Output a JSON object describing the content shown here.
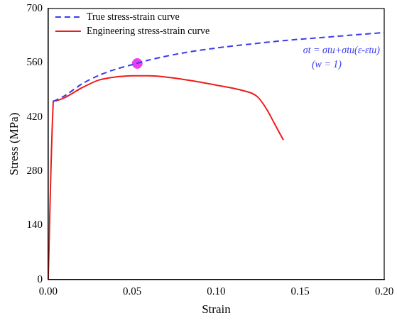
{
  "chart_data": {
    "type": "line",
    "x_label": "Strain",
    "y_label": "Stress (MPa)",
    "xlim": [
      0,
      0.2
    ],
    "ylim": [
      0,
      700
    ],
    "xticks": [
      {
        "value": 0,
        "label": "0.00"
      },
      {
        "value": 0.05,
        "label": "0.05"
      },
      {
        "value": 0.1,
        "label": "0.10"
      },
      {
        "value": 0.15,
        "label": "0.15"
      },
      {
        "value": 0.2,
        "label": "0.20"
      }
    ],
    "yticks": [
      0,
      140,
      280,
      420,
      560,
      700
    ],
    "grid": false,
    "legend": "top-left",
    "series": [
      {
        "name": "True stress-strain curve",
        "color": "#3b3bef",
        "line_style": "dashed",
        "x": [
          0.003,
          0.01,
          0.02,
          0.03,
          0.04,
          0.05,
          0.06,
          0.08,
          0.1,
          0.12,
          0.14,
          0.16,
          0.18,
          0.2
        ],
        "values": [
          460,
          475,
          505,
          527,
          543,
          555,
          567,
          585,
          598,
          608,
          617,
          624,
          631,
          638
        ]
      },
      {
        "name": "Engineering stress-strain curve",
        "color": "#ee1c1c",
        "line_style": "solid",
        "x": [
          0,
          0.003,
          0.005,
          0.01,
          0.02,
          0.03,
          0.04,
          0.05,
          0.06,
          0.07,
          0.08,
          0.09,
          0.1,
          0.11,
          0.12,
          0.125,
          0.13,
          0.135,
          0.14
        ],
        "values": [
          0,
          460,
          462,
          470,
          495,
          515,
          523,
          526,
          526,
          523,
          517,
          510,
          502,
          494,
          483,
          470,
          440,
          400,
          360
        ]
      }
    ],
    "points": [
      {
        "x": 0.053,
        "y": 558,
        "color": "#f03cf0",
        "marker": "circle"
      }
    ],
    "annotations": [
      "σt = σtu+σtu(ε-εtu)",
      "(w = 1)"
    ]
  }
}
